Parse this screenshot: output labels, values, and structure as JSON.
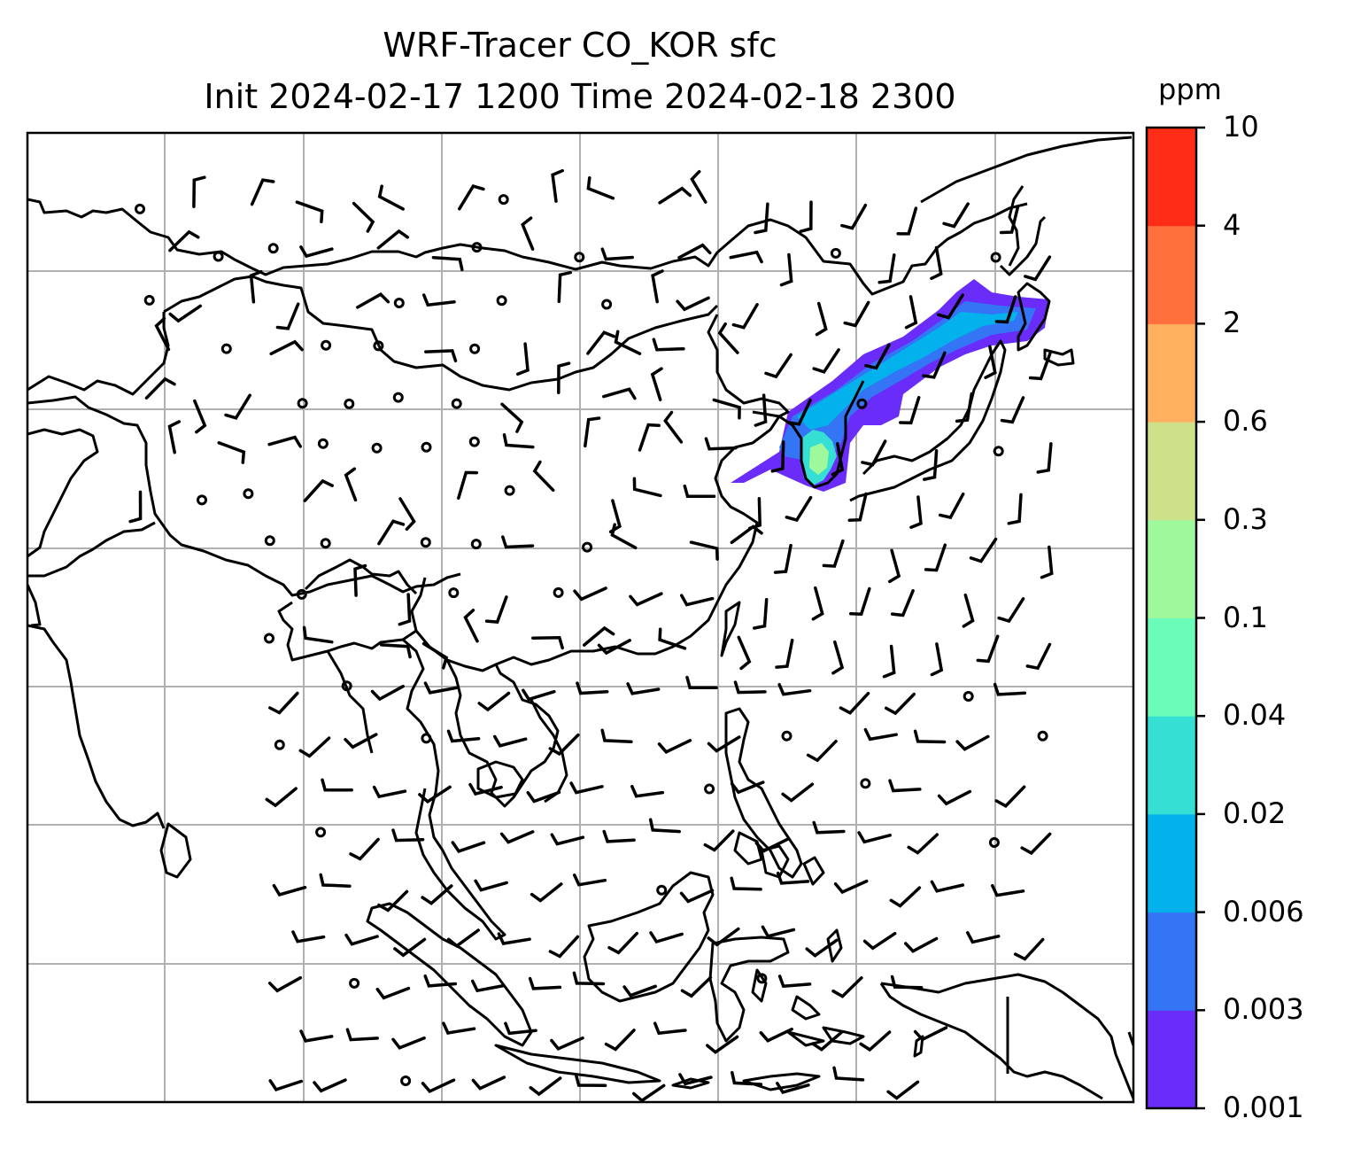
{
  "title": {
    "line1": "WRF-Tracer CO_KOR sfc",
    "line2": "Init 2024-02-17 1200 Time 2024-02-18 2300"
  },
  "colorbar": {
    "unit": "ppm",
    "ticks": [
      "0.001",
      "0.003",
      "0.006",
      "0.02",
      "0.04",
      "0.1",
      "0.3",
      "0.6",
      "2",
      "4",
      "10"
    ],
    "colors": [
      "#6a2cf9",
      "#3375f4",
      "#03b2ec",
      "#35dfd3",
      "#6bfcb9",
      "#9df99b",
      "#cfe08a",
      "#ffb05f",
      "#ff703d",
      "#ff2d17"
    ]
  },
  "map": {
    "gridlines": "on",
    "plume_colors": [
      "#6a2cf9",
      "#3375f4",
      "#03b2ec",
      "#35dfd3",
      "#9df99b"
    ]
  }
}
